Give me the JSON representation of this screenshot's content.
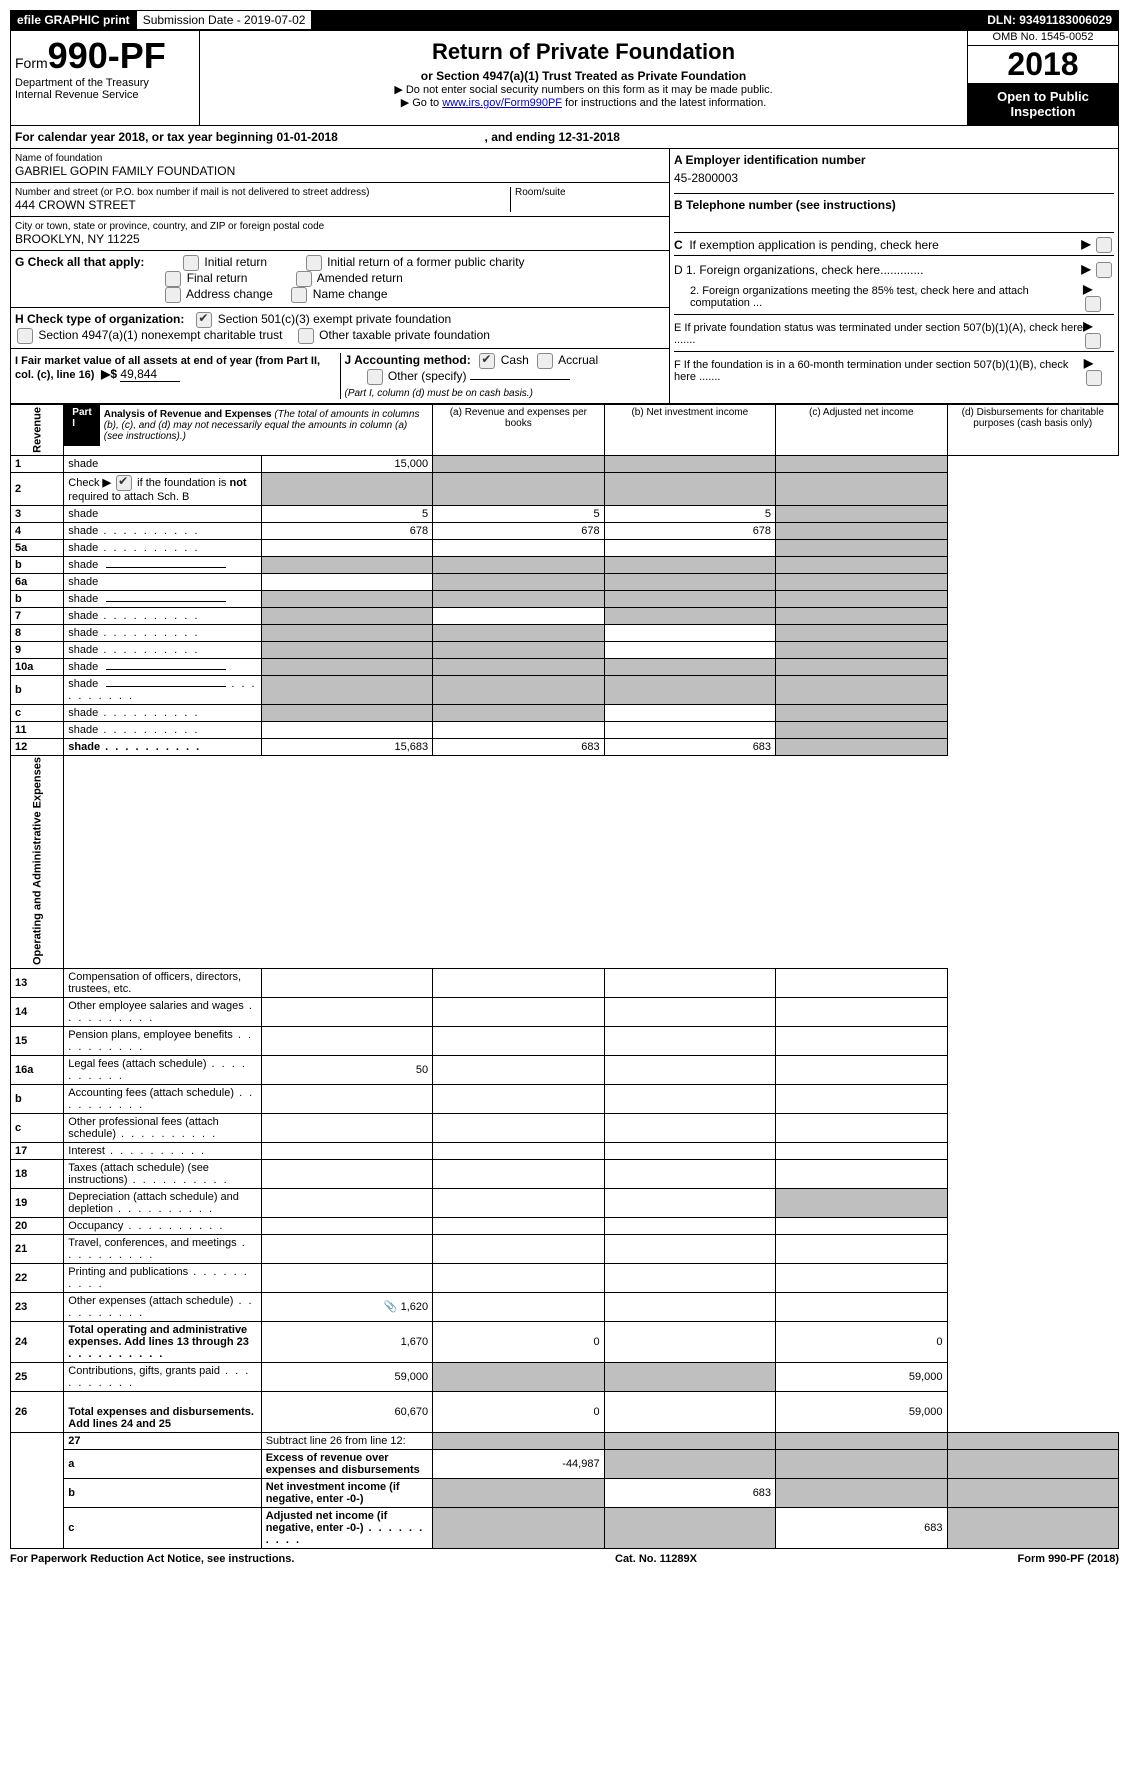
{
  "topbar": {
    "efile": "efile GRAPHIC print",
    "submission": "Submission Date - 2019-07-02",
    "dln": "DLN: 93491183006029"
  },
  "header": {
    "form_prefix": "Form",
    "form_number": "990-PF",
    "dept": "Department of the Treasury",
    "irs": "Internal Revenue Service",
    "title": "Return of Private Foundation",
    "subtitle": "or Section 4947(a)(1) Trust Treated as Private Foundation",
    "note1": "▶ Do not enter social security numbers on this form as it may be made public.",
    "note2_pre": "▶ Go to ",
    "note2_link": "www.irs.gov/Form990PF",
    "note2_post": " for instructions and the latest information.",
    "omb": "OMB No. 1545-0052",
    "year": "2018",
    "open": "Open to Public Inspection"
  },
  "calendar": {
    "text_pre": "For calendar year 2018, or tax year beginning ",
    "begin": "01-01-2018",
    "mid": " , and ending ",
    "end": "12-31-2018"
  },
  "entity": {
    "name_label": "Name of foundation",
    "name": "GABRIEL GOPIN FAMILY FOUNDATION",
    "addr_label": "Number and street (or P.O. box number if mail is not delivered to street address)",
    "addr": "444 CROWN STREET",
    "room_label": "Room/suite",
    "city_label": "City or town, state or province, country, and ZIP or foreign postal code",
    "city": "BROOKLYN, NY  11225",
    "ein_label": "A Employer identification number",
    "ein": "45-2800003",
    "phone_label": "B Telephone number (see instructions)",
    "c_label": "C  If exemption application is pending, check here",
    "d1": "D 1. Foreign organizations, check here.............",
    "d2": "2. Foreign organizations meeting the 85% test, check here and attach computation ...",
    "e": "E  If private foundation status was terminated under section 507(b)(1)(A), check here .......",
    "f": "F  If the foundation is in a 60-month termination under section 507(b)(1)(B), check here .......",
    "g_label": "G Check all that apply:",
    "g_opts": [
      "Initial return",
      "Initial return of a former public charity",
      "Final return",
      "Amended return",
      "Address change",
      "Name change"
    ],
    "h_label": "H Check type of organization:",
    "h1": "Section 501(c)(3) exempt private foundation",
    "h2": "Section 4947(a)(1) nonexempt charitable trust",
    "h3": "Other taxable private foundation",
    "i_label": "I Fair market value of all assets at end of year (from Part II, col. (c), line 16)",
    "i_val": "49,844",
    "j_label": "J Accounting method:",
    "j_cash": "Cash",
    "j_accrual": "Accrual",
    "j_other": "Other (specify)",
    "j_note": "(Part I, column (d) must be on cash basis.)"
  },
  "part1": {
    "label": "Part I",
    "title": "Analysis of Revenue and Expenses",
    "note": "(The total of amounts in columns (b), (c), and (d) may not necessarily equal the amounts in column (a) (see instructions).)",
    "col_a": "(a)    Revenue and expenses per books",
    "col_b": "(b)    Net investment income",
    "col_c": "(c)    Adjusted net income",
    "col_d": "(d)    Disbursements for charitable purposes (cash basis only)",
    "side_rev": "Revenue",
    "side_exp": "Operating and Administrative Expenses"
  },
  "rows": [
    {
      "n": "1",
      "d": "shade",
      "a": "15,000",
      "b": "shade",
      "c": "shade"
    },
    {
      "n": "2",
      "d": "shade",
      "a": "shade",
      "b": "shade",
      "c": "shade",
      "special": "check"
    },
    {
      "n": "3",
      "d": "shade",
      "a": "5",
      "b": "5",
      "c": "5"
    },
    {
      "n": "4",
      "d": "shade",
      "a": "678",
      "b": "678",
      "c": "678",
      "dots": true
    },
    {
      "n": "5a",
      "d": "shade",
      "a": "",
      "b": "",
      "c": "",
      "dots": true
    },
    {
      "n": "b",
      "d": "shade",
      "a": "shade",
      "b": "shade",
      "c": "shade",
      "inline": true
    },
    {
      "n": "6a",
      "d": "shade",
      "a": "",
      "b": "shade",
      "c": "shade"
    },
    {
      "n": "b",
      "d": "shade",
      "a": "shade",
      "b": "shade",
      "c": "shade",
      "inline": true
    },
    {
      "n": "7",
      "d": "shade",
      "a": "shade",
      "b": "",
      "c": "shade",
      "dots": true
    },
    {
      "n": "8",
      "d": "shade",
      "a": "shade",
      "b": "shade",
      "c": "",
      "dots": true
    },
    {
      "n": "9",
      "d": "shade",
      "a": "shade",
      "b": "shade",
      "c": "",
      "dots": true
    },
    {
      "n": "10a",
      "d": "shade",
      "a": "shade",
      "b": "shade",
      "c": "shade",
      "inline": true
    },
    {
      "n": "b",
      "d": "shade",
      "a": "shade",
      "b": "shade",
      "c": "shade",
      "inline": true,
      "dots": true
    },
    {
      "n": "c",
      "d": "shade",
      "a": "shade",
      "b": "shade",
      "c": "",
      "dots": true
    },
    {
      "n": "11",
      "d": "shade",
      "a": "",
      "b": "",
      "c": "",
      "dots": true
    },
    {
      "n": "12",
      "d": "shade",
      "a": "15,683",
      "b": "683",
      "c": "683",
      "bold": true,
      "dots": true
    }
  ],
  "exp_rows": [
    {
      "n": "13",
      "d": "Compensation of officers, directors, trustees, etc.",
      "a": "",
      "b": "",
      "c": "",
      "dd": ""
    },
    {
      "n": "14",
      "d": "Other employee salaries and wages",
      "a": "",
      "b": "",
      "c": "",
      "dd": "",
      "dots": true
    },
    {
      "n": "15",
      "d": "Pension plans, employee benefits",
      "a": "",
      "b": "",
      "c": "",
      "dd": "",
      "dots": true
    },
    {
      "n": "16a",
      "d": "Legal fees (attach schedule)",
      "a": "50",
      "b": "",
      "c": "",
      "dd": "",
      "dots": true
    },
    {
      "n": "b",
      "d": "Accounting fees (attach schedule)",
      "a": "",
      "b": "",
      "c": "",
      "dd": "",
      "dots": true
    },
    {
      "n": "c",
      "d": "Other professional fees (attach schedule)",
      "a": "",
      "b": "",
      "c": "",
      "dd": "",
      "dots": true
    },
    {
      "n": "17",
      "d": "Interest",
      "a": "",
      "b": "",
      "c": "",
      "dd": "",
      "dots": true
    },
    {
      "n": "18",
      "d": "Taxes (attach schedule) (see instructions)",
      "a": "",
      "b": "",
      "c": "",
      "dd": "",
      "dots": true
    },
    {
      "n": "19",
      "d": "Depreciation (attach schedule) and depletion",
      "a": "",
      "b": "",
      "c": "",
      "dd": "shade",
      "dots": true
    },
    {
      "n": "20",
      "d": "Occupancy",
      "a": "",
      "b": "",
      "c": "",
      "dd": "",
      "dots": true
    },
    {
      "n": "21",
      "d": "Travel, conferences, and meetings",
      "a": "",
      "b": "",
      "c": "",
      "dd": "",
      "dots": true
    },
    {
      "n": "22",
      "d": "Printing and publications",
      "a": "",
      "b": "",
      "c": "",
      "dd": "",
      "dots": true
    },
    {
      "n": "23",
      "d": "Other expenses (attach schedule)",
      "a": "1,620",
      "b": "",
      "c": "",
      "dd": "",
      "dots": true,
      "icon": true
    },
    {
      "n": "24",
      "d": "Total operating and administrative expenses. Add lines 13 through 23",
      "a": "1,670",
      "b": "0",
      "c": "",
      "dd": "0",
      "bold": true,
      "dots": true,
      "tall": true
    },
    {
      "n": "25",
      "d": "Contributions, gifts, grants paid",
      "a": "59,000",
      "b": "shade",
      "c": "shade",
      "dd": "59,000",
      "dots": true
    },
    {
      "n": "26",
      "d": "Total expenses and disbursements. Add lines 24 and 25",
      "a": "60,670",
      "b": "0",
      "c": "",
      "dd": "59,000",
      "bold": true,
      "tall": true
    }
  ],
  "bottom_rows": [
    {
      "n": "27",
      "d": "Subtract line 26 from line 12:",
      "a": "shade",
      "b": "shade",
      "c": "shade",
      "dd": "shade"
    },
    {
      "n": "a",
      "d": "Excess of revenue over expenses and disbursements",
      "a": "-44,987",
      "b": "shade",
      "c": "shade",
      "dd": "shade",
      "bold": true
    },
    {
      "n": "b",
      "d": "Net investment income (if negative, enter -0-)",
      "a": "shade",
      "b": "683",
      "c": "shade",
      "dd": "shade",
      "bold": true
    },
    {
      "n": "c",
      "d": "Adjusted net income (if negative, enter -0-)",
      "a": "shade",
      "b": "shade",
      "c": "683",
      "dd": "shade",
      "bold": true,
      "dots": true
    }
  ],
  "footer": {
    "left": "For Paperwork Reduction Act Notice, see instructions.",
    "mid": "Cat. No. 11289X",
    "right": "Form 990-PF (2018)"
  }
}
